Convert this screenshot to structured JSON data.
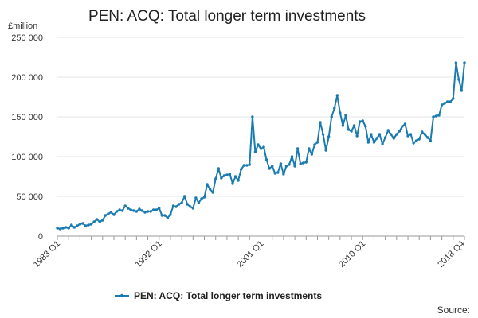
{
  "chart_data": {
    "type": "line",
    "title": "PEN: ACQ: Total longer term investments",
    "ylabel": "£million",
    "ylim": [
      0,
      250000
    ],
    "yticks": [
      0,
      50000,
      100000,
      150000,
      200000,
      250000
    ],
    "ytick_labels": [
      "0",
      "50 000",
      "100 000",
      "150 000",
      "200 000",
      "250 000"
    ],
    "x_tick_labels": [
      "1983 Q1",
      "1992 Q1",
      "2001 Q1",
      "2010 Q1",
      "2018 Q4"
    ],
    "x_start": "1983 Q1",
    "x_end": "2018 Q4",
    "grid": true,
    "legend_position": "bottom",
    "source_label": "Source:",
    "colors": {
      "series": "#1a7bb0",
      "grid": "#e6e6e6",
      "axis": "#999999"
    },
    "series": [
      {
        "name": "PEN: ACQ: Total longer term investments",
        "values": [
          10000,
          9000,
          10000,
          11000,
          10000,
          14000,
          11000,
          13000,
          15000,
          16000,
          13000,
          14000,
          15000,
          18000,
          21000,
          18000,
          20000,
          26000,
          28000,
          30000,
          27000,
          31000,
          33000,
          32000,
          38000,
          35000,
          33000,
          32000,
          31000,
          34000,
          32000,
          30000,
          31000,
          31000,
          33000,
          33000,
          35000,
          26000,
          26000,
          23000,
          27000,
          38000,
          37000,
          40000,
          42000,
          50000,
          40000,
          37000,
          35000,
          48000,
          42000,
          47000,
          49000,
          65000,
          59000,
          55000,
          72000,
          85000,
          73000,
          76000,
          77000,
          78000,
          66000,
          75000,
          70000,
          84000,
          89000,
          89000,
          90000,
          150000,
          106000,
          115000,
          110000,
          112000,
          96000,
          85000,
          88000,
          79000,
          80000,
          91000,
          78000,
          88000,
          90000,
          100000,
          88000,
          110000,
          91000,
          92000,
          93000,
          110000,
          103000,
          115000,
          118000,
          143000,
          128000,
          108000,
          125000,
          150000,
          161000,
          177000,
          155000,
          139000,
          152000,
          134000,
          132000,
          139000,
          126000,
          144000,
          145000,
          138000,
          118000,
          128000,
          118000,
          123000,
          128000,
          116000,
          124000,
          133000,
          128000,
          123000,
          128000,
          132000,
          138000,
          141000,
          126000,
          128000,
          117000,
          120000,
          122000,
          131000,
          128000,
          124000,
          120000,
          150000,
          151000,
          152000,
          165000,
          167000,
          169000,
          169000,
          173000,
          218000,
          197000,
          183000,
          218000
        ]
      }
    ]
  }
}
